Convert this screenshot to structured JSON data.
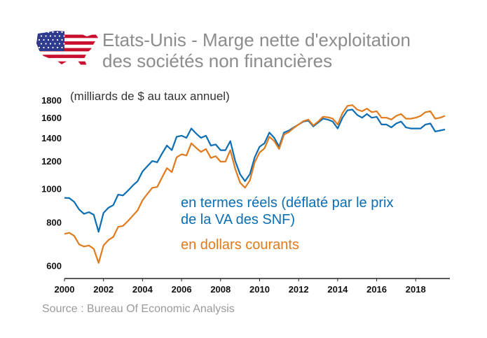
{
  "header": {
    "title_line1": "Etats-Unis - Marge nette d'exploitation",
    "title_line2": "des sociétés non financières"
  },
  "flag_icon": "us-flag-map-icon",
  "unit_label": "(milliards de $ au taux annuel)",
  "legend": {
    "real_line1": "en termes réels (déflaté par le prix",
    "real_line2": "de la VA des SNF)",
    "nominal": "en dollars courants"
  },
  "source": "Source : Bureau Of Economic Analysis",
  "colors": {
    "real": "#0b6db3",
    "nominal": "#e07a1c",
    "title": "#8c8c8c"
  },
  "chart_data": {
    "type": "line",
    "y_scale": "log",
    "ylim": [
      550,
      1850
    ],
    "xlim": [
      2000,
      2019.75
    ],
    "y_ticks": [
      600,
      800,
      1000,
      1200,
      1400,
      1600,
      1800
    ],
    "x_ticks": [
      2000,
      2002,
      2004,
      2006,
      2008,
      2010,
      2012,
      2014,
      2016,
      2018
    ],
    "grid": false,
    "series": [
      {
        "name": "en termes réels (déflaté par le prix de la VA des SNF)",
        "color": "#0b6db3",
        "points": [
          [
            2000.0,
            940
          ],
          [
            2000.25,
            938
          ],
          [
            2000.5,
            915
          ],
          [
            2000.75,
            870
          ],
          [
            2001.0,
            845
          ],
          [
            2001.25,
            855
          ],
          [
            2001.5,
            840
          ],
          [
            2001.75,
            750
          ],
          [
            2002.0,
            850
          ],
          [
            2002.25,
            880
          ],
          [
            2002.5,
            895
          ],
          [
            2002.75,
            960
          ],
          [
            2003.0,
            955
          ],
          [
            2003.25,
            985
          ],
          [
            2003.5,
            1020
          ],
          [
            2003.75,
            1050
          ],
          [
            2004.0,
            1120
          ],
          [
            2004.25,
            1160
          ],
          [
            2004.5,
            1200
          ],
          [
            2004.75,
            1190
          ],
          [
            2005.0,
            1260
          ],
          [
            2005.25,
            1330
          ],
          [
            2005.5,
            1290
          ],
          [
            2005.75,
            1410
          ],
          [
            2006.0,
            1420
          ],
          [
            2006.25,
            1400
          ],
          [
            2006.5,
            1490
          ],
          [
            2006.75,
            1440
          ],
          [
            2007.0,
            1400
          ],
          [
            2007.25,
            1420
          ],
          [
            2007.5,
            1330
          ],
          [
            2007.75,
            1340
          ],
          [
            2008.0,
            1290
          ],
          [
            2008.25,
            1290
          ],
          [
            2008.5,
            1370
          ],
          [
            2008.75,
            1200
          ],
          [
            2009.0,
            1100
          ],
          [
            2009.25,
            1050
          ],
          [
            2009.5,
            1100
          ],
          [
            2009.75,
            1230
          ],
          [
            2010.0,
            1320
          ],
          [
            2010.25,
            1350
          ],
          [
            2010.5,
            1450
          ],
          [
            2010.75,
            1400
          ],
          [
            2011.0,
            1320
          ],
          [
            2011.25,
            1450
          ],
          [
            2011.5,
            1470
          ],
          [
            2011.75,
            1500
          ],
          [
            2012.0,
            1530
          ],
          [
            2012.25,
            1560
          ],
          [
            2012.5,
            1570
          ],
          [
            2012.75,
            1510
          ],
          [
            2013.0,
            1550
          ],
          [
            2013.25,
            1590
          ],
          [
            2013.5,
            1580
          ],
          [
            2013.75,
            1560
          ],
          [
            2014.0,
            1490
          ],
          [
            2014.25,
            1600
          ],
          [
            2014.5,
            1680
          ],
          [
            2014.75,
            1690
          ],
          [
            2015.0,
            1630
          ],
          [
            2015.25,
            1600
          ],
          [
            2015.5,
            1640
          ],
          [
            2015.75,
            1600
          ],
          [
            2016.0,
            1610
          ],
          [
            2016.25,
            1530
          ],
          [
            2016.5,
            1530
          ],
          [
            2016.75,
            1500
          ],
          [
            2017.0,
            1540
          ],
          [
            2017.25,
            1560
          ],
          [
            2017.5,
            1500
          ],
          [
            2017.75,
            1490
          ],
          [
            2018.0,
            1490
          ],
          [
            2018.25,
            1490
          ],
          [
            2018.5,
            1530
          ],
          [
            2018.75,
            1540
          ],
          [
            2019.0,
            1460
          ],
          [
            2019.25,
            1470
          ],
          [
            2019.5,
            1480
          ]
        ]
      },
      {
        "name": "en dollars courants",
        "color": "#e07a1c",
        "points": [
          [
            2000.0,
            740
          ],
          [
            2000.25,
            745
          ],
          [
            2000.5,
            730
          ],
          [
            2000.75,
            690
          ],
          [
            2001.0,
            680
          ],
          [
            2001.25,
            685
          ],
          [
            2001.5,
            670
          ],
          [
            2001.75,
            610
          ],
          [
            2002.0,
            685
          ],
          [
            2002.25,
            710
          ],
          [
            2002.5,
            725
          ],
          [
            2002.75,
            775
          ],
          [
            2003.0,
            780
          ],
          [
            2003.25,
            805
          ],
          [
            2003.5,
            835
          ],
          [
            2003.75,
            865
          ],
          [
            2004.0,
            925
          ],
          [
            2004.25,
            965
          ],
          [
            2004.5,
            1005
          ],
          [
            2004.75,
            1010
          ],
          [
            2005.0,
            1075
          ],
          [
            2005.25,
            1145
          ],
          [
            2005.5,
            1115
          ],
          [
            2005.75,
            1230
          ],
          [
            2006.0,
            1255
          ],
          [
            2006.25,
            1245
          ],
          [
            2006.5,
            1350
          ],
          [
            2006.75,
            1310
          ],
          [
            2007.0,
            1275
          ],
          [
            2007.25,
            1300
          ],
          [
            2007.5,
            1225
          ],
          [
            2007.75,
            1240
          ],
          [
            2008.0,
            1195
          ],
          [
            2008.25,
            1195
          ],
          [
            2008.5,
            1290
          ],
          [
            2008.75,
            1140
          ],
          [
            2009.0,
            1040
          ],
          [
            2009.25,
            1005
          ],
          [
            2009.5,
            1055
          ],
          [
            2009.75,
            1190
          ],
          [
            2010.0,
            1270
          ],
          [
            2010.25,
            1305
          ],
          [
            2010.5,
            1410
          ],
          [
            2010.75,
            1370
          ],
          [
            2011.0,
            1300
          ],
          [
            2011.25,
            1430
          ],
          [
            2011.5,
            1455
          ],
          [
            2011.75,
            1495
          ],
          [
            2012.0,
            1530
          ],
          [
            2012.25,
            1565
          ],
          [
            2012.5,
            1580
          ],
          [
            2012.75,
            1520
          ],
          [
            2013.0,
            1560
          ],
          [
            2013.25,
            1610
          ],
          [
            2013.5,
            1605
          ],
          [
            2013.75,
            1590
          ],
          [
            2014.0,
            1530
          ],
          [
            2014.25,
            1650
          ],
          [
            2014.5,
            1730
          ],
          [
            2014.75,
            1740
          ],
          [
            2015.0,
            1690
          ],
          [
            2015.25,
            1670
          ],
          [
            2015.5,
            1700
          ],
          [
            2015.75,
            1660
          ],
          [
            2016.0,
            1670
          ],
          [
            2016.25,
            1600
          ],
          [
            2016.5,
            1600
          ],
          [
            2016.75,
            1580
          ],
          [
            2017.0,
            1620
          ],
          [
            2017.25,
            1640
          ],
          [
            2017.5,
            1590
          ],
          [
            2017.75,
            1590
          ],
          [
            2018.0,
            1600
          ],
          [
            2018.25,
            1620
          ],
          [
            2018.5,
            1660
          ],
          [
            2018.75,
            1670
          ],
          [
            2019.0,
            1590
          ],
          [
            2019.25,
            1600
          ],
          [
            2019.5,
            1620
          ]
        ]
      }
    ]
  }
}
